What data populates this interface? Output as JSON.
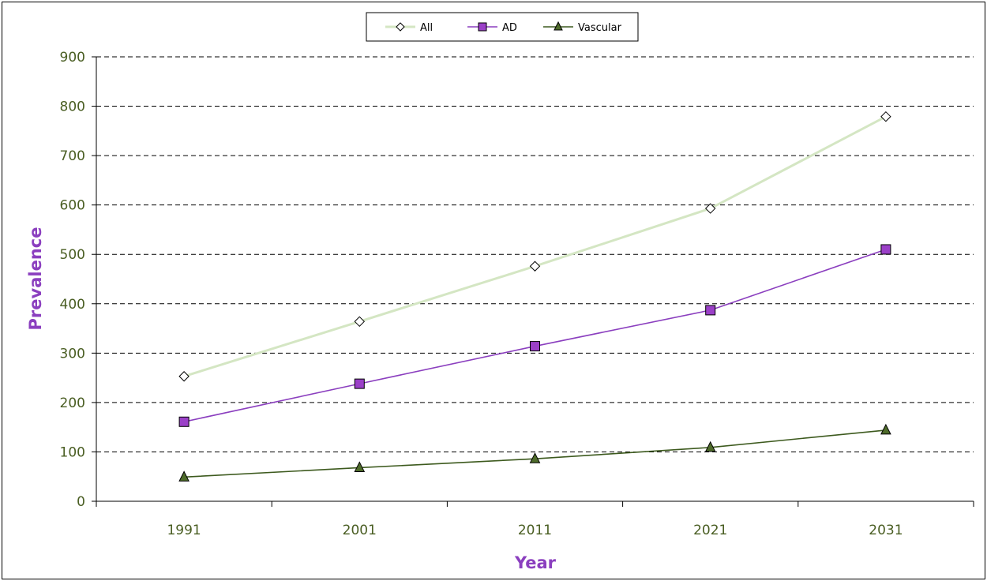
{
  "chart_data": {
    "type": "line",
    "title": "",
    "xlabel": "Year",
    "ylabel": "Prevalence",
    "categories": [
      "1991",
      "2001",
      "2011",
      "2021",
      "2031"
    ],
    "ylim": [
      0,
      900
    ],
    "yticks": [
      0,
      100,
      200,
      300,
      400,
      500,
      600,
      700,
      800,
      900
    ],
    "grid": "horizontal dashed",
    "legend_position": "top-center",
    "series": [
      {
        "name": "All",
        "values": [
          253,
          364,
          476,
          593,
          779
        ],
        "color": "#d4e6c3",
        "marker": "diamond",
        "marker_fill": "#ffffff"
      },
      {
        "name": "AD",
        "values": [
          161,
          238,
          314,
          387,
          510
        ],
        "color": "#8b3fbf",
        "marker": "square",
        "marker_fill": "#9b40c8"
      },
      {
        "name": "Vascular",
        "values": [
          49,
          68,
          86,
          109,
          144
        ],
        "color": "#3d5a1e",
        "marker": "triangle",
        "marker_fill": "#4e6b2a"
      }
    ],
    "colors": {
      "tick_text": "#4a5e23",
      "axis_title": "#8b3fbf"
    }
  }
}
